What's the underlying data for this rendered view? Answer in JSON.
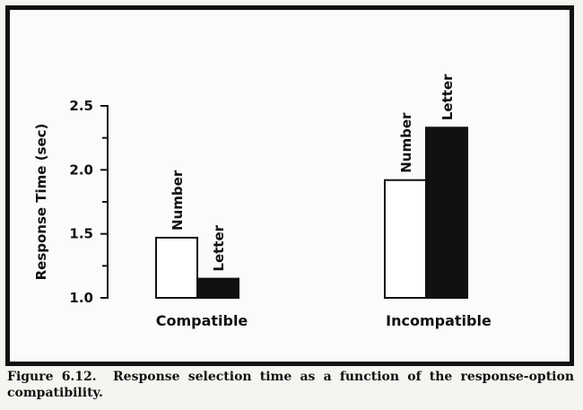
{
  "chart_data": {
    "type": "bar",
    "title": "",
    "xlabel": "",
    "ylabel": "Response Time (sec)",
    "ylim": [
      1.0,
      2.5
    ],
    "y_ticks": [
      "1.0",
      "1.5",
      "2.0",
      "2.5"
    ],
    "grid": false,
    "legend": "none (bars labeled directly)",
    "categories": [
      "Compatible",
      "Incompatible"
    ],
    "series": [
      {
        "name": "Number",
        "values": [
          1.47,
          1.92
        ],
        "color": "#ffffff"
      },
      {
        "name": "Letter",
        "values": [
          1.15,
          2.33
        ],
        "color": "#111111"
      }
    ]
  },
  "caption": {
    "figure_label": "Figure 6.12.",
    "text": "Response selection time as a function of the response-option compatibility."
  }
}
